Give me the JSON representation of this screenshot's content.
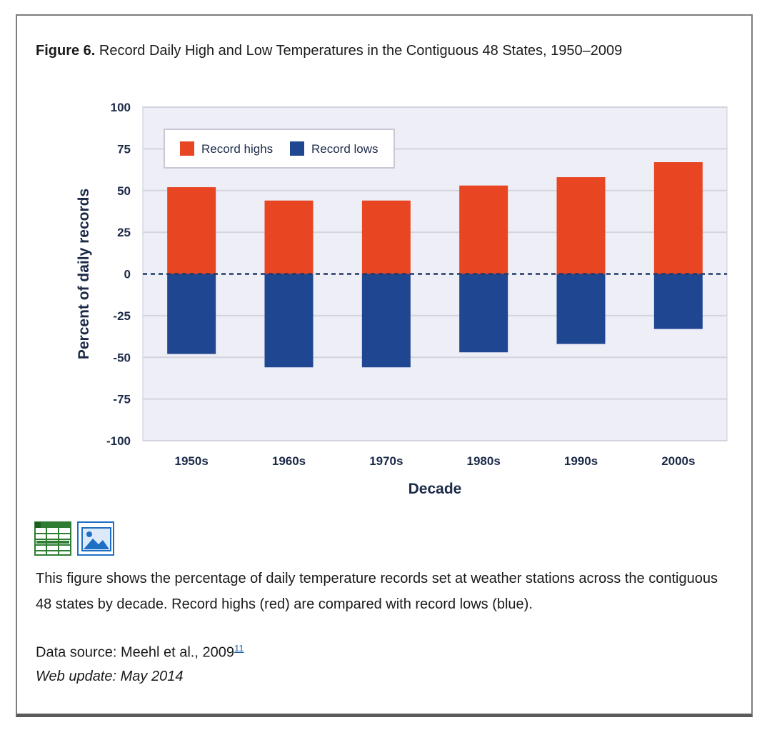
{
  "figure": {
    "label": "Figure 6.",
    "title": "Record Daily High and Low Temperatures in the Contiguous 48 States, 1950–2009"
  },
  "chart_data": {
    "type": "bar",
    "categories": [
      "1950s",
      "1960s",
      "1970s",
      "1980s",
      "1990s",
      "2000s"
    ],
    "series": [
      {
        "name": "Record highs",
        "values": [
          52,
          44,
          44,
          53,
          58,
          67
        ],
        "color": "#e84523"
      },
      {
        "name": "Record lows",
        "values": [
          -48,
          -56,
          -56,
          -47,
          -42,
          -33
        ],
        "color": "#1f4690"
      }
    ],
    "xlabel": "Decade",
    "ylabel": "Percent of daily records",
    "ylim": [
      -100,
      100
    ],
    "yticks": [
      "100",
      "75",
      "50",
      "25",
      "0",
      "-25",
      "-50",
      "-75",
      "-100"
    ],
    "grid": true,
    "zero_line": "dashed",
    "legend_position": "top-left"
  },
  "description": "This figure shows the percentage of daily temperature records set at weather stations across the contiguous 48 states by decade. Record highs (red) are compared with record lows (blue).",
  "source": {
    "text": "Data source: Meehl et al., 2009",
    "ref": "11"
  },
  "update": "Web update: May 2014",
  "icons": [
    "spreadsheet-icon",
    "image-icon"
  ]
}
